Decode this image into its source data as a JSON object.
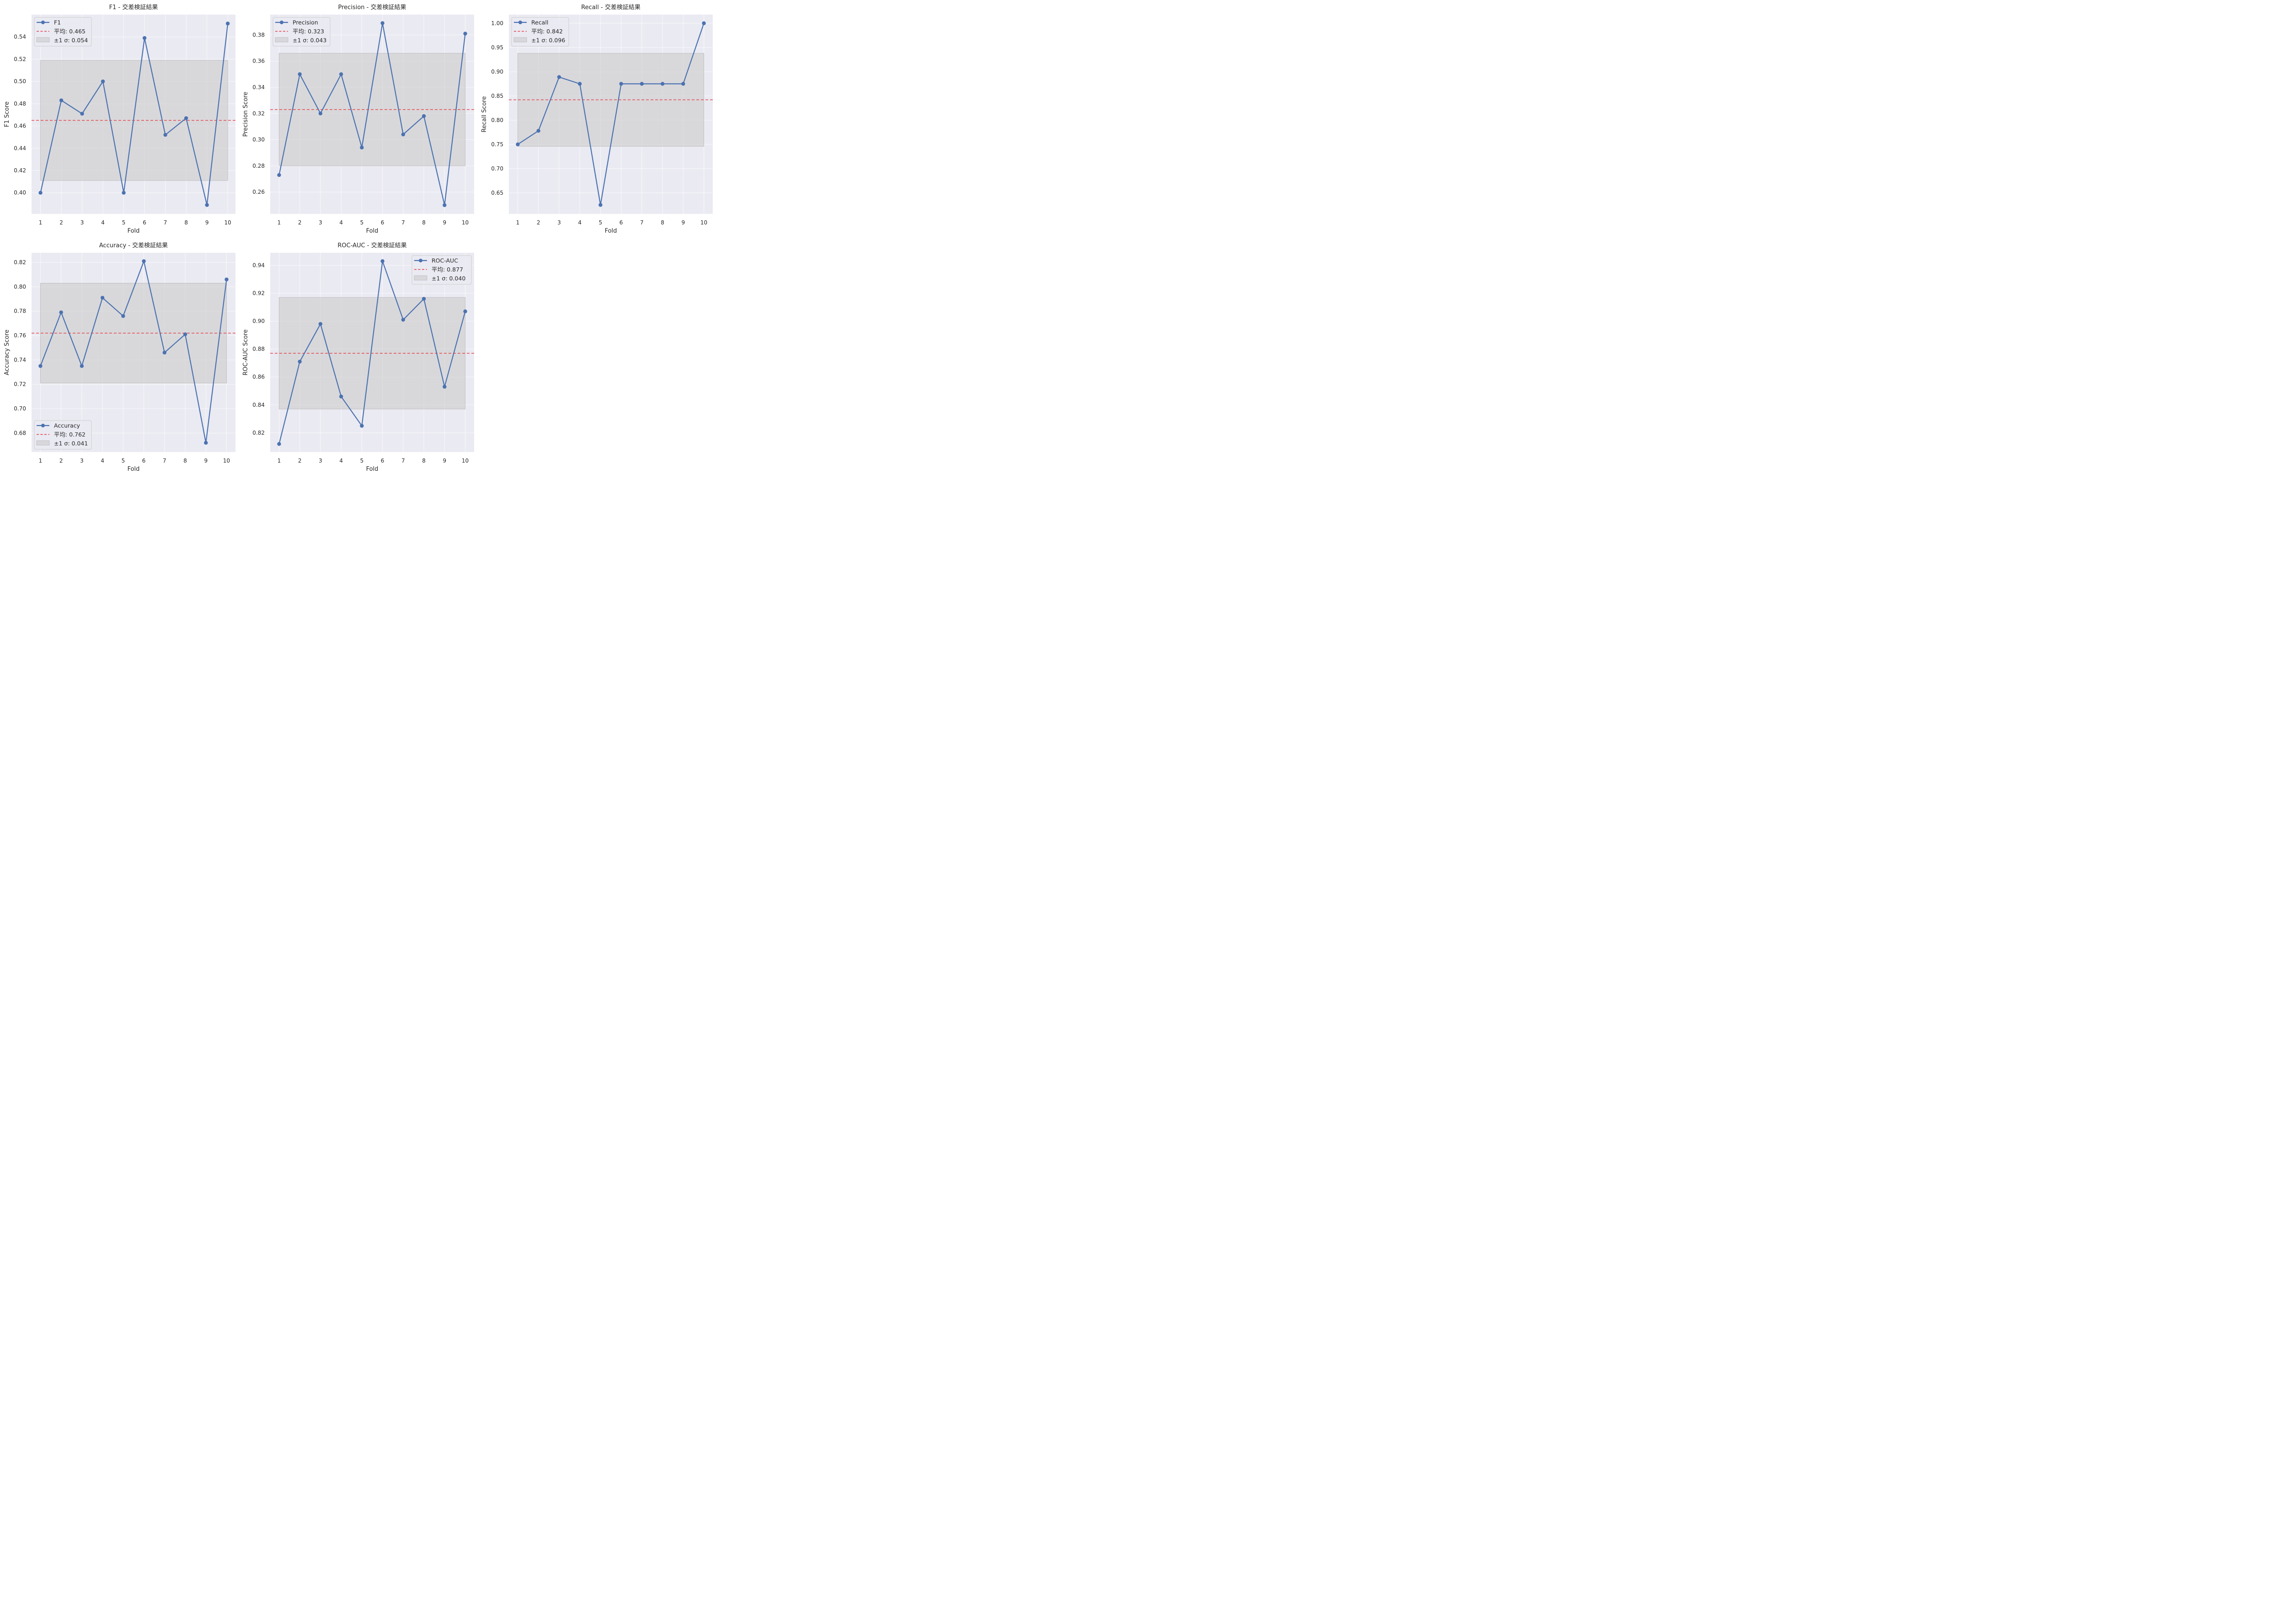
{
  "figure": {
    "background": "#ffffff",
    "plot_background": "#eaeaf2",
    "grid_color": "#ffffff",
    "line_color": "#4c72b0",
    "mean_line_color": "#e8393e",
    "band_color": "#c8c8c8"
  },
  "chart_data": [
    {
      "type": "line",
      "title": "F1 - 交差検証結果",
      "xlabel": "Fold",
      "ylabel": "F1 Score",
      "x": [
        1,
        2,
        3,
        4,
        5,
        6,
        7,
        8,
        9,
        10
      ],
      "xticks": [
        "1",
        "2",
        "3",
        "4",
        "5",
        "6",
        "7",
        "8",
        "9",
        "10"
      ],
      "yticks": [
        "0.40",
        "0.42",
        "0.44",
        "0.46",
        "0.48",
        "0.50",
        "0.52",
        "0.54"
      ],
      "ytick_values": [
        0.4,
        0.42,
        0.44,
        0.46,
        0.48,
        0.5,
        0.52,
        0.54
      ],
      "ylim": [
        0.381,
        0.56
      ],
      "xlim": [
        0.57,
        10.37
      ],
      "grid": true,
      "legend_position": "top-left",
      "series": [
        {
          "name": "F1",
          "values": [
            0.4,
            0.483,
            0.471,
            0.5,
            0.4,
            0.539,
            0.452,
            0.467,
            0.389,
            0.552
          ]
        }
      ],
      "mean": 0.465,
      "std": 0.054,
      "legend": [
        "F1",
        "平均: 0.465",
        "±1 σ: 0.054"
      ]
    },
    {
      "type": "line",
      "title": "Precision - 交差検証結果",
      "xlabel": "Fold",
      "ylabel": "Precision Score",
      "x": [
        1,
        2,
        3,
        4,
        5,
        6,
        7,
        8,
        9,
        10
      ],
      "xticks": [
        "1",
        "2",
        "3",
        "4",
        "5",
        "6",
        "7",
        "8",
        "9",
        "10"
      ],
      "yticks": [
        "0.26",
        "0.28",
        "0.30",
        "0.32",
        "0.34",
        "0.36",
        "0.38"
      ],
      "ytick_values": [
        0.26,
        0.28,
        0.3,
        0.32,
        0.34,
        0.36,
        0.38
      ],
      "ylim": [
        0.2433,
        0.3955
      ],
      "xlim": [
        0.57,
        10.43
      ],
      "grid": true,
      "legend_position": "top-left",
      "series": [
        {
          "name": "Precision",
          "values": [
            0.273,
            0.35,
            0.32,
            0.35,
            0.294,
            0.389,
            0.304,
            0.318,
            0.25,
            0.381
          ]
        }
      ],
      "mean": 0.323,
      "std": 0.043,
      "legend": [
        "Precision",
        "平均: 0.323",
        "±1 σ: 0.043"
      ]
    },
    {
      "type": "line",
      "title": "Recall - 交差検証結果",
      "xlabel": "Fold",
      "ylabel": "Recall Score",
      "x": [
        1,
        2,
        3,
        4,
        5,
        6,
        7,
        8,
        9,
        10
      ],
      "xticks": [
        "1",
        "2",
        "3",
        "4",
        "5",
        "6",
        "7",
        "8",
        "9",
        "10"
      ],
      "yticks": [
        "0.65",
        "0.70",
        "0.75",
        "0.80",
        "0.85",
        "0.90",
        "0.95",
        "1.00"
      ],
      "ytick_values": [
        0.65,
        0.7,
        0.75,
        0.8,
        0.85,
        0.9,
        0.95,
        1.0
      ],
      "ylim": [
        0.6065,
        1.0178
      ],
      "xlim": [
        0.57,
        10.43
      ],
      "grid": true,
      "legend_position": "top-left",
      "series": [
        {
          "name": "Recall",
          "values": [
            0.75,
            0.778,
            0.889,
            0.875,
            0.625,
            0.875,
            0.875,
            0.875,
            0.875,
            1.0
          ]
        }
      ],
      "mean": 0.842,
      "std": 0.096,
      "legend": [
        "Recall",
        "平均: 0.842",
        "±1 σ: 0.096"
      ]
    },
    {
      "type": "line",
      "title": "Accuracy - 交差検証結果",
      "xlabel": "Fold",
      "ylabel": "Accuracy Score",
      "x": [
        1,
        2,
        3,
        4,
        5,
        6,
        7,
        8,
        9,
        10
      ],
      "xticks": [
        "1",
        "2",
        "3",
        "4",
        "5",
        "6",
        "7",
        "8",
        "9",
        "10"
      ],
      "yticks": [
        "0.68",
        "0.70",
        "0.72",
        "0.74",
        "0.76",
        "0.78",
        "0.80",
        "0.82"
      ],
      "ytick_values": [
        0.68,
        0.7,
        0.72,
        0.74,
        0.76,
        0.78,
        0.8,
        0.82
      ],
      "ylim": [
        0.6644,
        0.8279
      ],
      "xlim": [
        0.57,
        10.43
      ],
      "grid": true,
      "legend_position": "bottom-left",
      "series": [
        {
          "name": "Accuracy",
          "values": [
            0.735,
            0.779,
            0.735,
            0.791,
            0.776,
            0.821,
            0.746,
            0.761,
            0.672,
            0.806
          ]
        }
      ],
      "mean": 0.762,
      "std": 0.041,
      "legend": [
        "Accuracy",
        "平均: 0.762",
        "±1 σ: 0.041"
      ]
    },
    {
      "type": "line",
      "title": "ROC-AUC - 交差検証結果",
      "xlabel": "Fold",
      "ylabel": "ROC-AUC Score",
      "x": [
        1,
        2,
        3,
        4,
        5,
        6,
        7,
        8,
        9,
        10
      ],
      "xticks": [
        "1",
        "2",
        "3",
        "4",
        "5",
        "6",
        "7",
        "8",
        "9",
        "10"
      ],
      "yticks": [
        "0.82",
        "0.84",
        "0.86",
        "0.88",
        "0.90",
        "0.92",
        "0.94"
      ],
      "ytick_values": [
        0.82,
        0.84,
        0.86,
        0.88,
        0.9,
        0.92,
        0.94
      ],
      "ylim": [
        0.8062,
        0.949
      ],
      "xlim": [
        0.57,
        10.43
      ],
      "grid": true,
      "legend_position": "top-right",
      "series": [
        {
          "name": "ROC-AUC",
          "values": [
            0.812,
            0.871,
            0.898,
            0.846,
            0.825,
            0.943,
            0.901,
            0.916,
            0.853,
            0.907
          ]
        }
      ],
      "mean": 0.877,
      "std": 0.04,
      "legend": [
        "ROC-AUC",
        "平均: 0.877",
        "±1 σ: 0.040"
      ]
    }
  ]
}
